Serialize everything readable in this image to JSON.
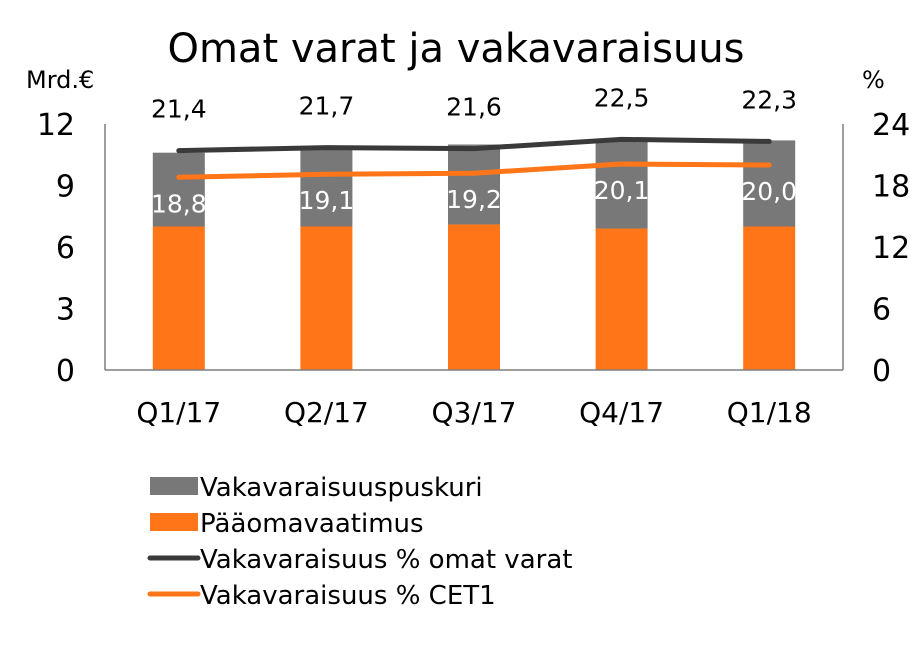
{
  "chart_data": {
    "type": "bar",
    "title": "Omat varat ja vakavaraisuus",
    "y_left_label": "Mrd.€",
    "y_right_label": "%",
    "ylim_left": [
      0,
      12
    ],
    "ylim_right": [
      0,
      24
    ],
    "yticks_left": [
      "0",
      "3",
      "6",
      "9",
      "12"
    ],
    "yticks_right": [
      "0",
      "6",
      "12",
      "18",
      "24"
    ],
    "categories": [
      "Q1/17",
      "Q2/17",
      "Q3/17",
      "Q4/17",
      "Q1/18"
    ],
    "stacked": true,
    "grid": false,
    "legend_position": "bottom-left",
    "bar_series": [
      {
        "name": "Pääomavaatimus",
        "color": "#FF7518",
        "values": [
          7.0,
          7.0,
          7.1,
          6.9,
          7.0
        ]
      },
      {
        "name": "Vakavaraisuuspuskuri",
        "color": "#787878",
        "values": [
          3.6,
          3.9,
          3.9,
          4.3,
          4.2
        ]
      }
    ],
    "line_series": [
      {
        "name": "Vakavaraisuus % omat varat",
        "color": "#3A3A3A",
        "axis": "right",
        "values": [
          21.4,
          21.7,
          21.6,
          22.5,
          22.3
        ],
        "labels": [
          "21,4",
          "21,7",
          "21,6",
          "22,5",
          "22,3"
        ]
      },
      {
        "name": "Vakavaraisuus % CET1",
        "color": "#FF7518",
        "axis": "right",
        "values": [
          18.8,
          19.1,
          19.2,
          20.1,
          20.0
        ],
        "labels": [
          "18,8",
          "19,1",
          "19,2",
          "20,1",
          "20,0"
        ]
      }
    ],
    "legend": [
      {
        "label": "Vakavaraisuuspuskuri",
        "kind": "box",
        "color": "#787878"
      },
      {
        "label": "Pääomavaatimus",
        "kind": "box",
        "color": "#FF7518"
      },
      {
        "label": "Vakavaraisuus % omat varat",
        "kind": "line",
        "color": "#3A3A3A"
      },
      {
        "label": "Vakavaraisuus % CET1",
        "kind": "line",
        "color": "#FF7518"
      }
    ]
  }
}
